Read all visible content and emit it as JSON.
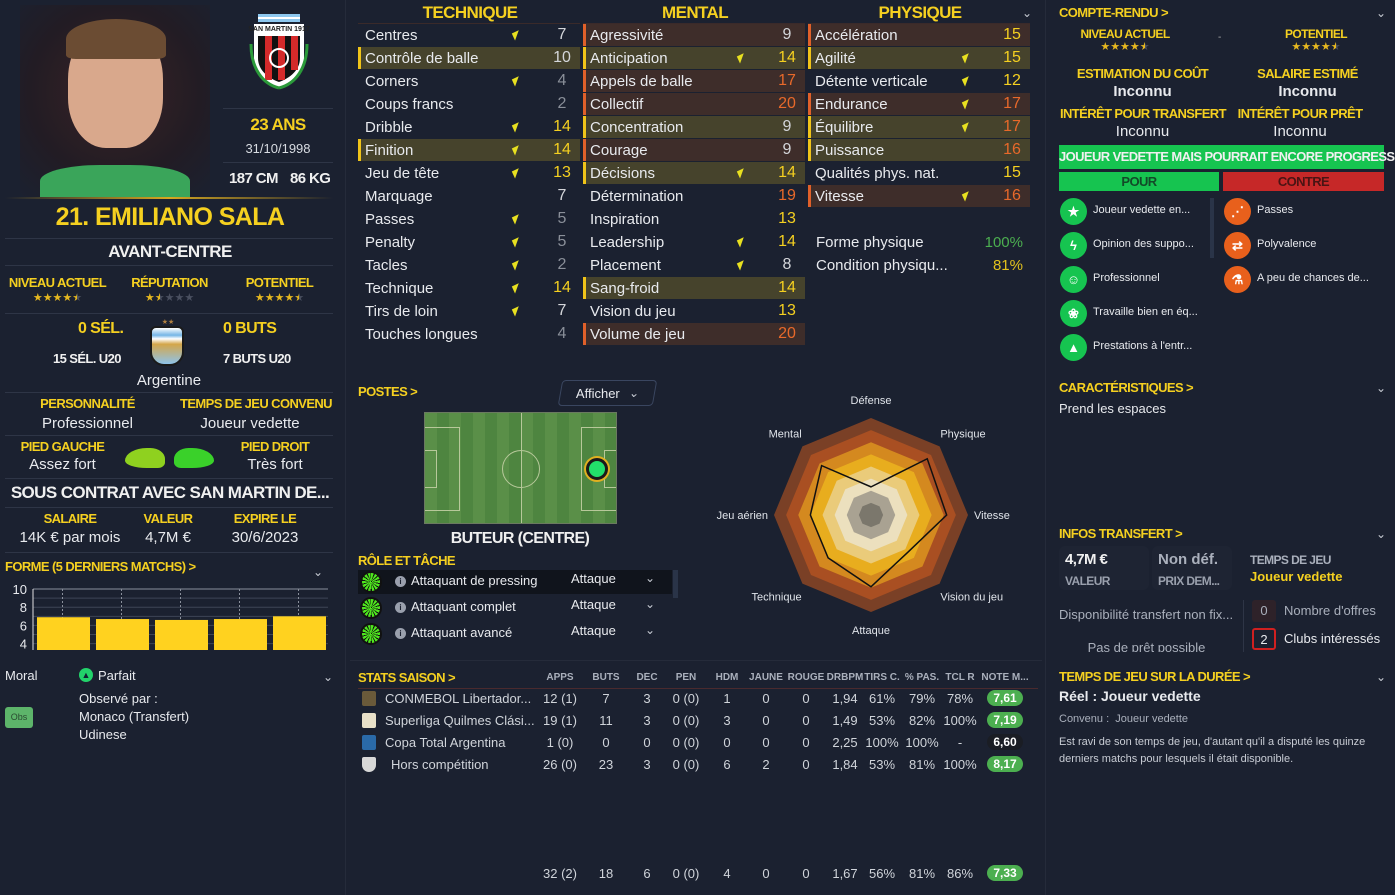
{
  "player": {
    "name": "21. EMILIANO SALA",
    "position": "AVANT-CENTRE",
    "age": "23 ANS",
    "birthdate": "31/10/1998",
    "height": "187 CM",
    "weight": "86 KG",
    "club_crest_text": "SAN MARTIN 1917"
  },
  "ratings": {
    "current_label": "NIVEAU ACTUEL",
    "current_stars": 4.5,
    "reputation_label": "RÉPUTATION",
    "reputation_stars": 1.5,
    "potential_label": "POTENTIEL",
    "potential_stars": 4.5
  },
  "international": {
    "caps": "0 SÉL.",
    "caps_u20": "15 SÉL. U20",
    "goals": "0 BUTS",
    "goals_u20": "7 BUTS U20",
    "nation": "Argentine"
  },
  "personality": {
    "label": "PERSONNALITÉ",
    "value": "Professionnel"
  },
  "playing_time": {
    "label": "TEMPS DE JEU CONVENU",
    "value": "Joueur vedette"
  },
  "feet": {
    "left_label": "PIED GAUCHE",
    "left_value": "Assez fort",
    "right_label": "PIED DROIT",
    "right_value": "Très fort",
    "left_color": "#8fd11f",
    "right_color": "#3ad12a"
  },
  "contract": {
    "title": "SOUS CONTRAT AVEC SAN MARTIN DE...",
    "salary_label": "SALAIRE",
    "salary": "14K € par mois",
    "value_label": "VALEUR",
    "value": "4,7M €",
    "expires_label": "EXPIRE LE",
    "expires": "30/6/2023"
  },
  "form": {
    "title": "FORME (5 DERNIERS MATCHS) >",
    "y_ticks": [
      "10",
      "8",
      "6",
      "4"
    ],
    "ylim": [
      3.3,
      10
    ],
    "values": [
      6.9,
      6.7,
      6.6,
      6.7,
      7.0
    ],
    "bar_color": "#ffd21f"
  },
  "morale": {
    "label": "Moral",
    "value": "Parfait",
    "scouted_label": "Observé par :",
    "scouted_by": [
      "Monaco (Transfert)",
      "Udinese"
    ],
    "obs_button": "Obs"
  },
  "attributes": {
    "columns": [
      {
        "title": "TECHNIQUE",
        "items": [
          {
            "name": "Centres",
            "value": 7,
            "arrow": true,
            "hl": ""
          },
          {
            "name": "Contrôle de balle",
            "value": 10,
            "arrow": false,
            "hl": "primary"
          },
          {
            "name": "Corners",
            "value": 4,
            "arrow": true,
            "hl": ""
          },
          {
            "name": "Coups francs",
            "value": 2,
            "arrow": false,
            "hl": ""
          },
          {
            "name": "Dribble",
            "value": 14,
            "arrow": true,
            "hl": ""
          },
          {
            "name": "Finition",
            "value": 14,
            "arrow": true,
            "hl": "primary"
          },
          {
            "name": "Jeu de tête",
            "value": 13,
            "arrow": true,
            "hl": ""
          },
          {
            "name": "Marquage",
            "value": 7,
            "arrow": false,
            "hl": ""
          },
          {
            "name": "Passes",
            "value": 5,
            "arrow": true,
            "hl": ""
          },
          {
            "name": "Penalty",
            "value": 5,
            "arrow": true,
            "hl": ""
          },
          {
            "name": "Tacles",
            "value": 2,
            "arrow": true,
            "hl": ""
          },
          {
            "name": "Technique",
            "value": 14,
            "arrow": true,
            "hl": ""
          },
          {
            "name": "Tirs de loin",
            "value": 7,
            "arrow": true,
            "hl": ""
          },
          {
            "name": "Touches longues",
            "value": 4,
            "arrow": false,
            "hl": ""
          }
        ]
      },
      {
        "title": "MENTAL",
        "items": [
          {
            "name": "Agressivité",
            "value": 9,
            "arrow": false,
            "hl": "secondary"
          },
          {
            "name": "Anticipation",
            "value": 14,
            "arrow": true,
            "hl": "primary"
          },
          {
            "name": "Appels de balle",
            "value": 17,
            "arrow": false,
            "hl": "secondary"
          },
          {
            "name": "Collectif",
            "value": 20,
            "arrow": false,
            "hl": "secondary"
          },
          {
            "name": "Concentration",
            "value": 9,
            "arrow": false,
            "hl": "primary"
          },
          {
            "name": "Courage",
            "value": 9,
            "arrow": false,
            "hl": "secondary"
          },
          {
            "name": "Décisions",
            "value": 14,
            "arrow": true,
            "hl": "primary"
          },
          {
            "name": "Détermination",
            "value": 19,
            "arrow": false,
            "hl": ""
          },
          {
            "name": "Inspiration",
            "value": 13,
            "arrow": false,
            "hl": ""
          },
          {
            "name": "Leadership",
            "value": 14,
            "arrow": true,
            "hl": ""
          },
          {
            "name": "Placement",
            "value": 8,
            "arrow": true,
            "hl": ""
          },
          {
            "name": "Sang-froid",
            "value": 14,
            "arrow": false,
            "hl": "primary"
          },
          {
            "name": "Vision du jeu",
            "value": 13,
            "arrow": false,
            "hl": ""
          },
          {
            "name": "Volume de jeu",
            "value": 20,
            "arrow": false,
            "hl": "secondary"
          }
        ]
      },
      {
        "title": "PHYSIQUE",
        "items": [
          {
            "name": "Accélération",
            "value": 15,
            "arrow": false,
            "hl": "secondary"
          },
          {
            "name": "Agilité",
            "value": 15,
            "arrow": true,
            "hl": "primary"
          },
          {
            "name": "Détente verticale",
            "value": 12,
            "arrow": true,
            "hl": ""
          },
          {
            "name": "Endurance",
            "value": 17,
            "arrow": true,
            "hl": "secondary"
          },
          {
            "name": "Équilibre",
            "value": 17,
            "arrow": true,
            "hl": "primary"
          },
          {
            "name": "Puissance",
            "value": 16,
            "arrow": false,
            "hl": "primary"
          },
          {
            "name": "Qualités phys. nat.",
            "value": 15,
            "arrow": false,
            "hl": ""
          },
          {
            "name": "Vitesse",
            "value": 16,
            "arrow": true,
            "hl": "secondary"
          }
        ]
      }
    ],
    "fitness_label": "Forme physique",
    "fitness": "100%",
    "condition_label": "Condition physiqu...",
    "condition": "81%"
  },
  "positions": {
    "title": "POSTES >",
    "show_button": "Afficher",
    "selected": "BUTEUR (CENTRE)",
    "role_title": "RÔLE ET TÂCHE",
    "roles": [
      {
        "name": "Attaquant de pressing",
        "duty": "Attaque"
      },
      {
        "name": "Attaquant complet",
        "duty": "Attaque"
      },
      {
        "name": "Attaquant avancé",
        "duty": "Attaque"
      }
    ]
  },
  "radar": {
    "axes": [
      "Défense",
      "Physique",
      "Vitesse",
      "Vision du jeu",
      "Attaque",
      "Technique",
      "Jeu aérien",
      "Mental"
    ],
    "values": [
      5.8,
      16.4,
      15.6,
      10.8,
      14.8,
      12.5,
      12.5,
      14.4
    ],
    "max": 20,
    "band_colors": [
      "#7a4026",
      "#a94f22",
      "#d4891f",
      "#e8ad1e",
      "#eacb7a",
      "#ece0be",
      "#a9a292",
      "#7b776c"
    ]
  },
  "season_stats": {
    "title": "STATS SAISON >",
    "headers": [
      "APPS",
      "BUTS",
      "DÉC",
      "PEN",
      "HDM",
      "JAUNE",
      "ROUGE",
      "DRBPM",
      "TIRS C.",
      "% PAS.",
      "TCL R",
      "NOTE M..."
    ],
    "rows": [
      {
        "competition": "CONMEBOL Libertador...",
        "cells": [
          "12 (1)",
          "7",
          "3",
          "0 (0)",
          "1",
          "0",
          "0",
          "1,94",
          "61%",
          "79%",
          "78%"
        ],
        "rating": "7,61",
        "rating_color": "#4caf50"
      },
      {
        "competition": "Superliga Quilmes Clási...",
        "cells": [
          "19 (1)",
          "11",
          "3",
          "0 (0)",
          "3",
          "0",
          "0",
          "1,49",
          "53%",
          "82%",
          "100%"
        ],
        "rating": "7,19",
        "rating_color": "#4caf50"
      },
      {
        "competition": "Copa Total Argentina",
        "cells": [
          "1 (0)",
          "0",
          "0",
          "0 (0)",
          "0",
          "0",
          "0",
          "2,25",
          "100%",
          "100%",
          "-"
        ],
        "rating": "6,60",
        "rating_color": "#1a1d24"
      },
      {
        "competition": "Hors compétition",
        "cells": [
          "26 (0)",
          "23",
          "3",
          "0 (0)",
          "6",
          "2",
          "0",
          "1,84",
          "53%",
          "81%",
          "100%"
        ],
        "rating": "8,17",
        "rating_color": "#4caf50"
      }
    ],
    "totals": {
      "cells": [
        "32 (2)",
        "18",
        "6",
        "0 (0)",
        "4",
        "0",
        "0",
        "1,67",
        "56%",
        "81%",
        "86%"
      ],
      "rating": "7,33",
      "rating_color": "#4caf50"
    }
  },
  "report": {
    "title": "COMPTE-RENDU >",
    "current_label": "NIVEAU ACTUEL",
    "current_stars": 4.5,
    "separator": "-",
    "potential_label": "POTENTIEL",
    "potential_stars": 4.5,
    "cost_label": "ESTIMATION DU COÛT",
    "cost": "Inconnu",
    "wage_label": "SALAIRE ESTIMÉ",
    "wage": "Inconnu",
    "transfer_interest_label": "INTÉRÊT POUR TRANSFERT",
    "transfer_interest": "Inconnu",
    "loan_interest_label": "INTÉRÊT POUR PRÊT",
    "loan_interest": "Inconnu",
    "verdict": "JOUEUR VEDETTE MAIS POURRAIT ENCORE PROGRESSER",
    "pros_label": "POUR",
    "cons_label": "CONTRE",
    "pros": [
      {
        "text": "Joueur vedette en...",
        "icon": "star-icon"
      },
      {
        "text": "Opinion des suppo...",
        "icon": "supporters-icon"
      },
      {
        "text": "Professionnel",
        "icon": "head-icon"
      },
      {
        "text": "Travaille bien en éq...",
        "icon": "teamwork-icon"
      },
      {
        "text": "Prestations à l'entr...",
        "icon": "training-icon"
      }
    ],
    "cons": [
      {
        "text": "Passes",
        "icon": "passing-icon"
      },
      {
        "text": "Polyvalence",
        "icon": "versatility-icon"
      },
      {
        "text": "A peu de chances de...",
        "icon": "flask-icon"
      }
    ]
  },
  "traits": {
    "title": "CARACTÉRISTIQUES >",
    "items": [
      "Prend les espaces"
    ]
  },
  "transfer": {
    "title": "INFOS TRANSFERT >",
    "value": "4,7M €",
    "value_label": "VALEUR",
    "asking": "Non déf.",
    "asking_label": "PRIX DEM...",
    "playing_time_label": "TEMPS DE JEU",
    "playing_time": "Joueur vedette",
    "availability": "Disponibilité transfert non fix...",
    "loan": "Pas de prêt possible",
    "offers": "0",
    "offers_label": "Nombre d'offres",
    "interested": "2",
    "interested_label": "Clubs intéressés"
  },
  "playing_time_history": {
    "title": "TEMPS DE JEU SUR LA DURÉE >",
    "actual": "Réel : Joueur vedette",
    "agreed": "Convenu :  Joueur vedette",
    "description": "Est ravi de son temps de jeu, d'autant qu'il a disputé les quinze derniers matchs pour lesquels il était disponible."
  }
}
